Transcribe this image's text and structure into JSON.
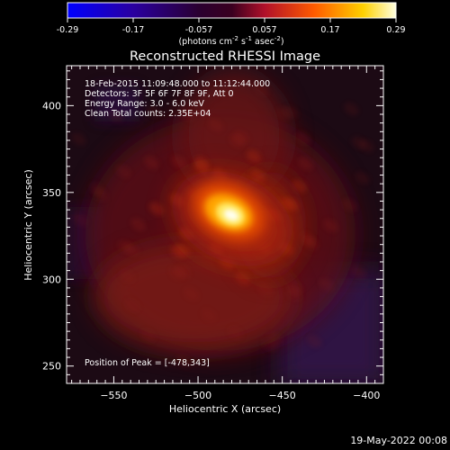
{
  "colorbar": {
    "tick_labels": [
      "-0.29",
      "-0.17",
      "-0.057",
      "0.057",
      "0.17",
      "0.29"
    ],
    "units_text": "(photons cm",
    "units_exp1": "-2",
    "units_mid1": " s",
    "units_exp2": "-1",
    "units_mid2": " asec",
    "units_exp3": "-2",
    "units_end": ")",
    "range": [
      -0.29,
      0.29
    ]
  },
  "chart_data": {
    "type": "heatmap",
    "title": "Reconstructed RHESSI Image",
    "xlabel": "Heliocentric X (arcsec)",
    "ylabel": "Heliocentric Y (arcsec)",
    "xlim": [
      -578,
      -390
    ],
    "ylim": [
      240,
      423
    ],
    "x_ticks": [
      -550,
      -500,
      -450,
      -400
    ],
    "y_ticks": [
      250,
      300,
      350,
      400
    ],
    "x_tick_labels": [
      "−550",
      "−500",
      "−450",
      "−400"
    ],
    "y_tick_labels": [
      "250",
      "300",
      "350",
      "400"
    ],
    "annotations": [
      "18-Feb-2015 11:09:48.000 to 11:12:44.000",
      "Detectors: 3F 5F 6F 7F 8F 9F, Att 0",
      "Energy Range: 3.0 - 6.0 keV",
      "Clean     Total counts: 2.35E+04"
    ],
    "peak_label": "Position of Peak = [-478,343]",
    "peak": [
      -478,
      343
    ],
    "peak_value": 0.29
  },
  "footer": {
    "timestamp": "19-May-2022 00:08"
  }
}
